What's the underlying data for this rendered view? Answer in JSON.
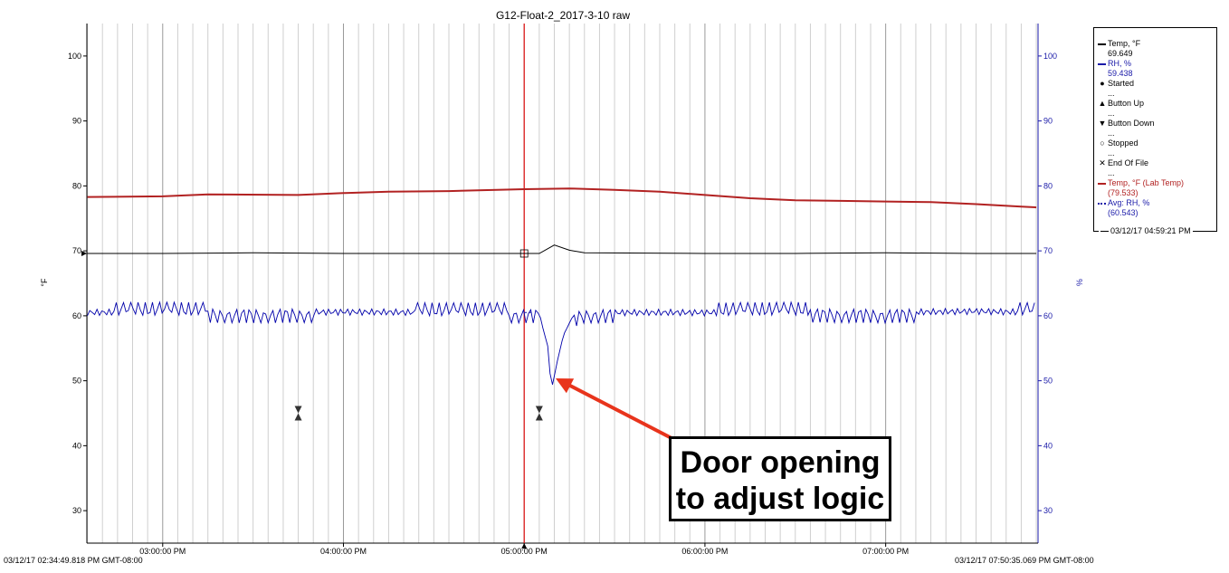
{
  "chart_data": {
    "type": "line",
    "title": "G12-Float-2_2017-3-10 raw",
    "ylabel_left": "°F",
    "ylabel_right": "%",
    "ylim": [
      25,
      105
    ],
    "y_ticks": [
      30,
      40,
      50,
      60,
      70,
      80,
      90,
      100
    ],
    "x_ticks": [
      {
        "label": "03:00:00 PM",
        "value": "15:00"
      },
      {
        "label": "04:00:00 PM",
        "value": "16:00"
      },
      {
        "label": "05:00:00 PM",
        "value": "17:00"
      },
      {
        "label": "06:00:00 PM",
        "value": "18:00"
      },
      {
        "label": "07:00:00 PM",
        "value": "19:00"
      }
    ],
    "x_start_label": "03/12/17 02:34:49.818 PM GMT-08:00",
    "x_end_label": "03/12/17 07:50:35.069 PM GMT-08:00",
    "cursor_time": "17:00",
    "series": [
      {
        "name": "Temp, °F (Lab Temp)",
        "color": "#b22222",
        "x": [
          "14:35",
          "15:00",
          "15:15",
          "15:45",
          "16:00",
          "16:15",
          "16:35",
          "17:00",
          "17:15",
          "17:30",
          "17:45",
          "18:00",
          "18:15",
          "18:30",
          "18:45",
          "19:00",
          "19:15",
          "19:30",
          "19:45",
          "19:50"
        ],
        "values": [
          78.3,
          78.4,
          78.7,
          78.6,
          78.9,
          79.1,
          79.2,
          79.5,
          79.6,
          79.4,
          79.1,
          78.6,
          78.1,
          77.8,
          77.7,
          77.6,
          77.5,
          77.2,
          76.8,
          76.7
        ]
      },
      {
        "name": "Temp, °F",
        "color": "#000000",
        "x": [
          "14:35",
          "15:00",
          "15:30",
          "16:00",
          "16:30",
          "17:00",
          "17:05",
          "17:10",
          "17:15",
          "17:20",
          "18:00",
          "18:30",
          "19:00",
          "19:30",
          "19:50"
        ],
        "values": [
          69.6,
          69.6,
          69.7,
          69.6,
          69.6,
          69.6,
          69.6,
          70.9,
          70.1,
          69.7,
          69.6,
          69.6,
          69.7,
          69.6,
          69.6
        ]
      },
      {
        "name": "RH, %",
        "color": "#0000aa",
        "x": [
          "14:35",
          "15:00",
          "15:30",
          "16:00",
          "16:30",
          "17:00",
          "17:05",
          "17:06",
          "17:08",
          "17:09",
          "17:11",
          "17:13",
          "17:16",
          "17:20",
          "17:30",
          "18:00",
          "18:30",
          "19:00",
          "19:30",
          "19:50"
        ],
        "values": [
          60.5,
          60.6,
          60.5,
          60.6,
          60.5,
          60.5,
          60.5,
          58.5,
          55.0,
          48.5,
          53.0,
          57.0,
          59.8,
          60.5,
          60.5,
          60.5,
          60.6,
          60.5,
          60.7,
          60.5
        ]
      },
      {
        "name": "Avg: RH, %",
        "color": "#1a1aa8",
        "x": [
          "17:00",
          "17:03"
        ],
        "values": [
          60.5,
          60.5
        ]
      }
    ],
    "events": [
      {
        "type": "button-down-up",
        "x": "15:45",
        "y": 45
      },
      {
        "type": "button-down-up",
        "x": "17:05",
        "y": 45
      }
    ],
    "annotation": "Door opening to adjust logic"
  },
  "legend": {
    "items": [
      {
        "label": "Temp, °F",
        "value": "69.649",
        "color": "#000000"
      },
      {
        "label": "RH, %",
        "value": "59.438",
        "color": "#1a1aa8"
      },
      {
        "symbol": "●",
        "label": "Started",
        "value": "..."
      },
      {
        "symbol": "▲",
        "label": "Button Up",
        "value": "..."
      },
      {
        "symbol": "▼",
        "label": "Button Down",
        "value": "..."
      },
      {
        "symbol": "○",
        "label": "Stopped",
        "value": "..."
      },
      {
        "symbol": "✕",
        "label": "End Of File",
        "value": "..."
      },
      {
        "label": "Temp, °F (Lab Temp)",
        "value": "(79.533)",
        "color": "#b22222"
      },
      {
        "label": "Avg: RH, %",
        "value": "(60.543)",
        "color": "#1a1aa8"
      }
    ],
    "footer": "03/12/17 04:59:21 PM"
  }
}
